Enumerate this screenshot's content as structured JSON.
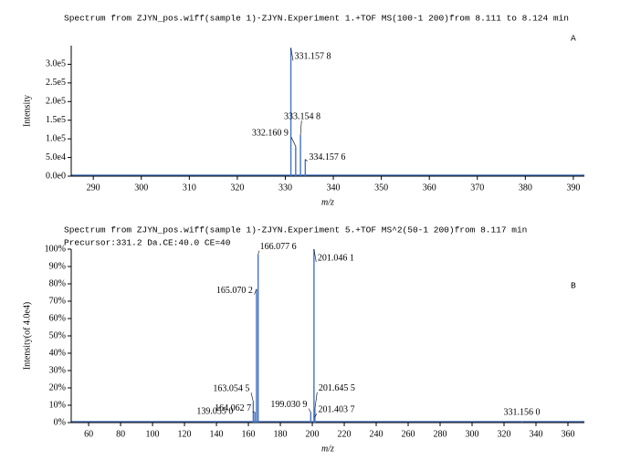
{
  "chart_data": [
    {
      "type": "spectrum",
      "title": "Spectrum from ZJYN_pos.wiff(sample 1)-ZJYN.Experiment 1.+TOF MS(100-1 200)from 8.111 to 8.124 min",
      "panel_label": "A",
      "xlabel": "m/z",
      "ylabel": "Intensity",
      "x": [
        331.1578,
        332.1609,
        333.1548,
        334.1576
      ],
      "peak_labels": [
        "331.157 8",
        "332.160 9",
        "333.154 8",
        "334.157 6"
      ],
      "values": [
        344000,
        80000,
        110000,
        45000
      ],
      "color": "#4472c4",
      "xlim": [
        285.4,
        392.3
      ],
      "xticks": [
        290,
        300,
        310,
        320,
        330,
        340,
        350,
        360,
        370,
        380,
        390
      ],
      "ylim": [
        0,
        350000
      ],
      "yticks": [
        {
          "value": 0,
          "label": "0.0e0"
        },
        {
          "value": 50000,
          "label": "5.0e4"
        },
        {
          "value": 100000,
          "label": "1.0e5"
        },
        {
          "value": 150000,
          "label": "1.5e5"
        },
        {
          "value": 200000,
          "label": "2.0e5"
        },
        {
          "value": 250000,
          "label": "2.5e5"
        },
        {
          "value": 300000,
          "label": "3.0e5"
        }
      ]
    },
    {
      "type": "spectrum",
      "title": "Spectrum from ZJYN_pos.wiff(sample 1)-ZJYN.Experiment 5.+TOF MS^2(50-1 200)from 8.117 min",
      "subtitle": "Precursor:331.2 Da.CE:40.0 CE=40",
      "panel_label": "B",
      "xlabel": "m/z",
      "ylabel": "Intensity(of 4.0e4)",
      "x": [
        166.0776,
        165.0702,
        201.0461,
        163.0545,
        164.0627,
        139.055,
        199.0309,
        201.6455,
        201.4037,
        331.156
      ],
      "peak_labels": [
        "166.077 6",
        "165.070 2",
        "201.046 1",
        "163.054 5",
        "164.062 7",
        "139.055 0",
        "199.030 9",
        "201.645 5",
        "201.403 7",
        "331.156 0"
      ],
      "values": [
        97,
        77,
        100,
        12,
        6,
        1,
        6,
        8,
        3,
        0.5
      ],
      "color": "#4472c4",
      "xlim": [
        49.1,
        370.3
      ],
      "xticks": [
        60,
        80,
        100,
        120,
        140,
        160,
        180,
        200,
        220,
        240,
        260,
        280,
        300,
        320,
        340,
        360
      ],
      "ylim": [
        0,
        100
      ],
      "yticks": [
        {
          "value": 0,
          "label": "0%"
        },
        {
          "value": 10,
          "label": "10%"
        },
        {
          "value": 20,
          "label": "20%"
        },
        {
          "value": 30,
          "label": "30%"
        },
        {
          "value": 40,
          "label": "40%"
        },
        {
          "value": 50,
          "label": "50%"
        },
        {
          "value": 60,
          "label": "60%"
        },
        {
          "value": 70,
          "label": "70%"
        },
        {
          "value": 80,
          "label": "80%"
        },
        {
          "value": 90,
          "label": "90%"
        },
        {
          "value": 100,
          "label": "100%"
        }
      ]
    }
  ]
}
